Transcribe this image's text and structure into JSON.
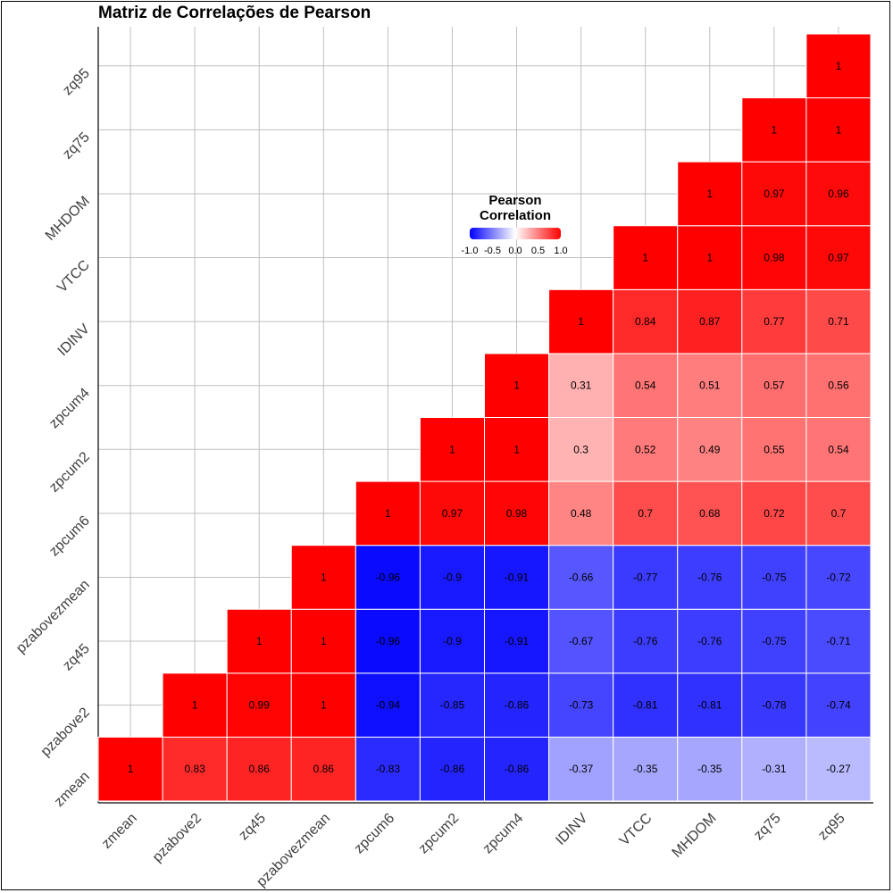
{
  "chart_data": {
    "type": "heatmap",
    "title": "Matriz de Correlações de Pearson",
    "variables": [
      "zmean",
      "pzabove2",
      "zq45",
      "pzabovezmean",
      "zpcum6",
      "zpcum2",
      "zpcum4",
      "IDINV",
      "VTCC",
      "MHDOM",
      "zq75",
      "zq95"
    ],
    "triangle": "upper",
    "matrix": [
      [
        1,
        0.83,
        0.86,
        0.86,
        -0.83,
        -0.86,
        -0.86,
        -0.37,
        -0.35,
        -0.35,
        -0.31,
        -0.27
      ],
      [
        null,
        1,
        0.99,
        1,
        -0.94,
        -0.85,
        -0.86,
        -0.73,
        -0.81,
        -0.81,
        -0.78,
        -0.74
      ],
      [
        null,
        null,
        1,
        1,
        -0.96,
        -0.9,
        -0.91,
        -0.67,
        -0.76,
        -0.76,
        -0.75,
        -0.71
      ],
      [
        null,
        null,
        null,
        1,
        -0.96,
        -0.9,
        -0.91,
        -0.66,
        -0.77,
        -0.76,
        -0.75,
        -0.72
      ],
      [
        null,
        null,
        null,
        null,
        1,
        0.97,
        0.98,
        0.48,
        0.7,
        0.68,
        0.72,
        0.7
      ],
      [
        null,
        null,
        null,
        null,
        null,
        1,
        1,
        0.3,
        0.52,
        0.49,
        0.55,
        0.54
      ],
      [
        null,
        null,
        null,
        null,
        null,
        null,
        1,
        0.31,
        0.54,
        0.51,
        0.57,
        0.56
      ],
      [
        null,
        null,
        null,
        null,
        null,
        null,
        null,
        1,
        0.84,
        0.87,
        0.77,
        0.71
      ],
      [
        null,
        null,
        null,
        null,
        null,
        null,
        null,
        null,
        1,
        1,
        0.98,
        0.97
      ],
      [
        null,
        null,
        null,
        null,
        null,
        null,
        null,
        null,
        null,
        1,
        0.97,
        0.96
      ],
      [
        null,
        null,
        null,
        null,
        null,
        null,
        null,
        null,
        null,
        null,
        1,
        1
      ],
      [
        null,
        null,
        null,
        null,
        null,
        null,
        null,
        null,
        null,
        null,
        null,
        1
      ]
    ],
    "legend": {
      "title_line1": "Pearson",
      "title_line2": "Correlation",
      "ticks": [
        "-1.0",
        "-0.5",
        "0.0",
        "0.5",
        "1.0"
      ],
      "tick_values": [
        -1,
        -0.5,
        0,
        0.5,
        1
      ],
      "placement": "inside-top-center"
    },
    "scale": {
      "low": "#0000ff",
      "mid": "#ffffff",
      "high": "#ff0000",
      "limits": [
        -1,
        1
      ]
    },
    "grid": true
  }
}
